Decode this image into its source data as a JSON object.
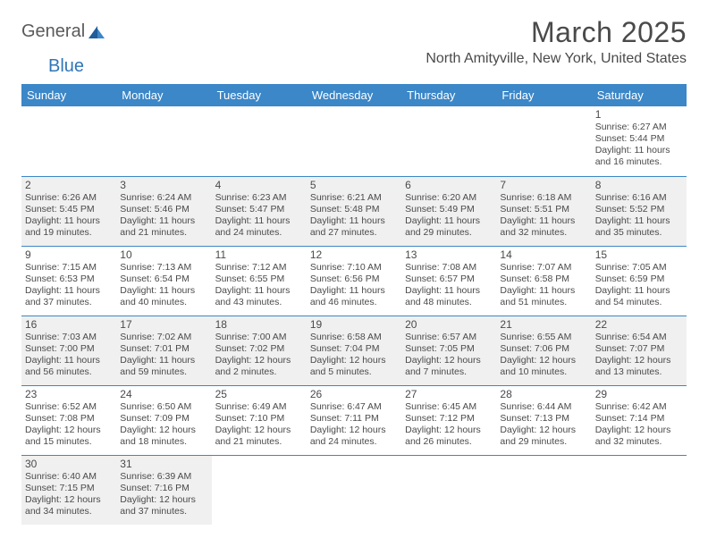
{
  "logo": {
    "text1": "General",
    "text2": "Blue"
  },
  "title": "March 2025",
  "location": "North Amityville, New York, United States",
  "colors": {
    "header_bg": "#3b87c8",
    "header_text": "#ffffff",
    "border": "#3b87c8",
    "shaded_bg": "#f0f0f0",
    "text": "#4a4a4a",
    "logo_blue": "#3176b8"
  },
  "day_headers": [
    "Sunday",
    "Monday",
    "Tuesday",
    "Wednesday",
    "Thursday",
    "Friday",
    "Saturday"
  ],
  "weeks": [
    [
      {
        "empty": true
      },
      {
        "empty": true
      },
      {
        "empty": true
      },
      {
        "empty": true
      },
      {
        "empty": true
      },
      {
        "empty": true
      },
      {
        "day": 1,
        "sunrise": "6:27 AM",
        "sunset": "5:44 PM",
        "daylight": "11 hours and 16 minutes."
      }
    ],
    [
      {
        "day": 2,
        "sunrise": "6:26 AM",
        "sunset": "5:45 PM",
        "daylight": "11 hours and 19 minutes.",
        "shaded": true
      },
      {
        "day": 3,
        "sunrise": "6:24 AM",
        "sunset": "5:46 PM",
        "daylight": "11 hours and 21 minutes.",
        "shaded": true
      },
      {
        "day": 4,
        "sunrise": "6:23 AM",
        "sunset": "5:47 PM",
        "daylight": "11 hours and 24 minutes.",
        "shaded": true
      },
      {
        "day": 5,
        "sunrise": "6:21 AM",
        "sunset": "5:48 PM",
        "daylight": "11 hours and 27 minutes.",
        "shaded": true
      },
      {
        "day": 6,
        "sunrise": "6:20 AM",
        "sunset": "5:49 PM",
        "daylight": "11 hours and 29 minutes.",
        "shaded": true
      },
      {
        "day": 7,
        "sunrise": "6:18 AM",
        "sunset": "5:51 PM",
        "daylight": "11 hours and 32 minutes.",
        "shaded": true
      },
      {
        "day": 8,
        "sunrise": "6:16 AM",
        "sunset": "5:52 PM",
        "daylight": "11 hours and 35 minutes.",
        "shaded": true
      }
    ],
    [
      {
        "day": 9,
        "sunrise": "7:15 AM",
        "sunset": "6:53 PM",
        "daylight": "11 hours and 37 minutes."
      },
      {
        "day": 10,
        "sunrise": "7:13 AM",
        "sunset": "6:54 PM",
        "daylight": "11 hours and 40 minutes."
      },
      {
        "day": 11,
        "sunrise": "7:12 AM",
        "sunset": "6:55 PM",
        "daylight": "11 hours and 43 minutes."
      },
      {
        "day": 12,
        "sunrise": "7:10 AM",
        "sunset": "6:56 PM",
        "daylight": "11 hours and 46 minutes."
      },
      {
        "day": 13,
        "sunrise": "7:08 AM",
        "sunset": "6:57 PM",
        "daylight": "11 hours and 48 minutes."
      },
      {
        "day": 14,
        "sunrise": "7:07 AM",
        "sunset": "6:58 PM",
        "daylight": "11 hours and 51 minutes."
      },
      {
        "day": 15,
        "sunrise": "7:05 AM",
        "sunset": "6:59 PM",
        "daylight": "11 hours and 54 minutes."
      }
    ],
    [
      {
        "day": 16,
        "sunrise": "7:03 AM",
        "sunset": "7:00 PM",
        "daylight": "11 hours and 56 minutes.",
        "shaded": true
      },
      {
        "day": 17,
        "sunrise": "7:02 AM",
        "sunset": "7:01 PM",
        "daylight": "11 hours and 59 minutes.",
        "shaded": true
      },
      {
        "day": 18,
        "sunrise": "7:00 AM",
        "sunset": "7:02 PM",
        "daylight": "12 hours and 2 minutes.",
        "shaded": true
      },
      {
        "day": 19,
        "sunrise": "6:58 AM",
        "sunset": "7:04 PM",
        "daylight": "12 hours and 5 minutes.",
        "shaded": true
      },
      {
        "day": 20,
        "sunrise": "6:57 AM",
        "sunset": "7:05 PM",
        "daylight": "12 hours and 7 minutes.",
        "shaded": true
      },
      {
        "day": 21,
        "sunrise": "6:55 AM",
        "sunset": "7:06 PM",
        "daylight": "12 hours and 10 minutes.",
        "shaded": true
      },
      {
        "day": 22,
        "sunrise": "6:54 AM",
        "sunset": "7:07 PM",
        "daylight": "12 hours and 13 minutes.",
        "shaded": true
      }
    ],
    [
      {
        "day": 23,
        "sunrise": "6:52 AM",
        "sunset": "7:08 PM",
        "daylight": "12 hours and 15 minutes."
      },
      {
        "day": 24,
        "sunrise": "6:50 AM",
        "sunset": "7:09 PM",
        "daylight": "12 hours and 18 minutes."
      },
      {
        "day": 25,
        "sunrise": "6:49 AM",
        "sunset": "7:10 PM",
        "daylight": "12 hours and 21 minutes."
      },
      {
        "day": 26,
        "sunrise": "6:47 AM",
        "sunset": "7:11 PM",
        "daylight": "12 hours and 24 minutes."
      },
      {
        "day": 27,
        "sunrise": "6:45 AM",
        "sunset": "7:12 PM",
        "daylight": "12 hours and 26 minutes."
      },
      {
        "day": 28,
        "sunrise": "6:44 AM",
        "sunset": "7:13 PM",
        "daylight": "12 hours and 29 minutes."
      },
      {
        "day": 29,
        "sunrise": "6:42 AM",
        "sunset": "7:14 PM",
        "daylight": "12 hours and 32 minutes."
      }
    ],
    [
      {
        "day": 30,
        "sunrise": "6:40 AM",
        "sunset": "7:15 PM",
        "daylight": "12 hours and 34 minutes.",
        "shaded": true
      },
      {
        "day": 31,
        "sunrise": "6:39 AM",
        "sunset": "7:16 PM",
        "daylight": "12 hours and 37 minutes.",
        "shaded": true
      },
      {
        "empty": true
      },
      {
        "empty": true
      },
      {
        "empty": true
      },
      {
        "empty": true
      },
      {
        "empty": true
      }
    ]
  ],
  "labels": {
    "sunrise": "Sunrise: ",
    "sunset": "Sunset: ",
    "daylight": "Daylight: "
  }
}
